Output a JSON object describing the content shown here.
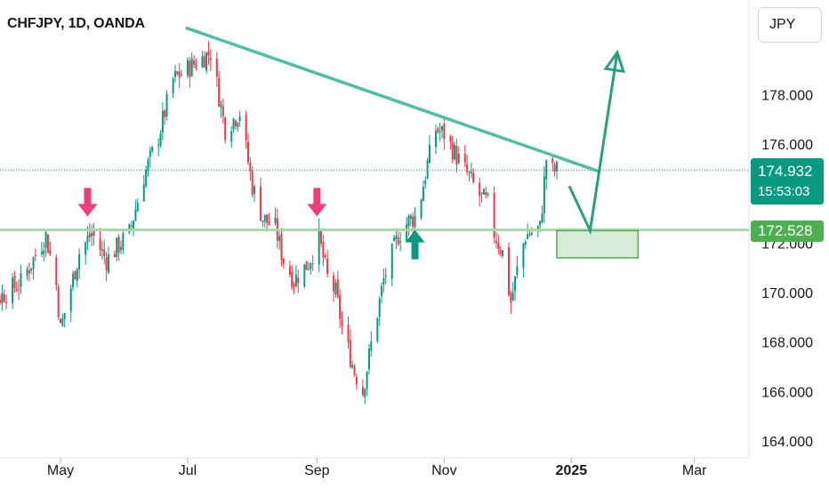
{
  "header": {
    "title": "CHFJPY, 1D, OANDA"
  },
  "currency_button": {
    "label": "JPY"
  },
  "price_badge": {
    "price": "174.932",
    "countdown": "15:53:03"
  },
  "level_badge": {
    "price": "172.528"
  },
  "colors": {
    "up": "#089981",
    "down": "#f23645",
    "trendline": "#4dbfa5",
    "support": "#a5d6a7",
    "arrow_down": "#ec407a",
    "arrow_up": "#089981",
    "projection": "#26a17b"
  },
  "icons": [
    "arrow-down-marker-icon",
    "arrow-up-marker-icon"
  ],
  "chart_data": {
    "type": "candlestick",
    "symbol": "CHFJPY",
    "interval": "1D",
    "source": "OANDA",
    "ylim": [
      163.6,
      182.0
    ],
    "y_ticks": [
      164,
      166,
      168,
      170,
      172,
      174,
      176,
      178
    ],
    "y_tick_labels": [
      "164.000",
      "166.000",
      "168.000",
      "170.000",
      "172.000",
      "174.000",
      "176.000",
      "178.000"
    ],
    "x_axis_labels": [
      {
        "label": "May",
        "date": "2024-05-01"
      },
      {
        "label": "Jul",
        "date": "2024-07-01"
      },
      {
        "label": "Sep",
        "date": "2024-09-01"
      },
      {
        "label": "Nov",
        "date": "2024-11-01"
      },
      {
        "label": "2025",
        "date": "2025-01-01",
        "bold": true
      },
      {
        "label": "Mar",
        "date": "2025-03-01"
      }
    ],
    "last_price": 174.932,
    "support_level": 172.528,
    "price_path": [
      {
        "date": "2024-03-18",
        "price": 168.6
      },
      {
        "date": "2024-04-03",
        "price": 169.9
      },
      {
        "date": "2024-04-12",
        "price": 170.4
      },
      {
        "date": "2024-04-24",
        "price": 172.3
      },
      {
        "date": "2024-04-29",
        "price": 170.3
      },
      {
        "date": "2024-05-01",
        "price": 168.5
      },
      {
        "date": "2024-05-10",
        "price": 171.6
      },
      {
        "date": "2024-05-16",
        "price": 172.4
      },
      {
        "date": "2024-05-23",
        "price": 171.3
      },
      {
        "date": "2024-06-03",
        "price": 172.4
      },
      {
        "date": "2024-06-10",
        "price": 174.7
      },
      {
        "date": "2024-06-17",
        "price": 176.3
      },
      {
        "date": "2024-06-24",
        "price": 178.6
      },
      {
        "date": "2024-07-05",
        "price": 179.3
      },
      {
        "date": "2024-07-12",
        "price": 179.7
      },
      {
        "date": "2024-07-15",
        "price": 178.4
      },
      {
        "date": "2024-07-19",
        "price": 176.6
      },
      {
        "date": "2024-07-26",
        "price": 177.3
      },
      {
        "date": "2024-08-01",
        "price": 174.3
      },
      {
        "date": "2024-08-06",
        "price": 173.0
      },
      {
        "date": "2024-08-12",
        "price": 172.6
      },
      {
        "date": "2024-08-16",
        "price": 171.3
      },
      {
        "date": "2024-08-21",
        "price": 170.5
      },
      {
        "date": "2024-08-28",
        "price": 171.2
      },
      {
        "date": "2024-09-02",
        "price": 172.2
      },
      {
        "date": "2024-09-06",
        "price": 170.6
      },
      {
        "date": "2024-09-10",
        "price": 170.0
      },
      {
        "date": "2024-09-13",
        "price": 168.6
      },
      {
        "date": "2024-09-19",
        "price": 166.8
      },
      {
        "date": "2024-09-23",
        "price": 166.0
      },
      {
        "date": "2024-09-27",
        "price": 167.9
      },
      {
        "date": "2024-10-03",
        "price": 170.5
      },
      {
        "date": "2024-10-10",
        "price": 172.3
      },
      {
        "date": "2024-10-15",
        "price": 172.9
      },
      {
        "date": "2024-10-19",
        "price": 173.1
      },
      {
        "date": "2024-10-24",
        "price": 175.2
      },
      {
        "date": "2024-10-28",
        "price": 176.6
      },
      {
        "date": "2024-11-01",
        "price": 176.4
      },
      {
        "date": "2024-11-07",
        "price": 175.5
      },
      {
        "date": "2024-11-12",
        "price": 174.8
      },
      {
        "date": "2024-11-18",
        "price": 173.9
      },
      {
        "date": "2024-11-22",
        "price": 173.6
      },
      {
        "date": "2024-11-25",
        "price": 172.4
      },
      {
        "date": "2024-11-29",
        "price": 171.6
      },
      {
        "date": "2024-12-03",
        "price": 169.6
      },
      {
        "date": "2024-12-06",
        "price": 170.9
      },
      {
        "date": "2024-12-10",
        "price": 172.3
      },
      {
        "date": "2024-12-17",
        "price": 172.6
      },
      {
        "date": "2024-12-20",
        "price": 175.4
      },
      {
        "date": "2024-12-23",
        "price": 174.9
      },
      {
        "date": "2024-12-25",
        "price": 174.932
      }
    ],
    "annotations": {
      "trendline": [
        {
          "date": "2024-06-30",
          "price": 180.7
        },
        {
          "date": "2025-01-14",
          "price": 174.9
        }
      ],
      "support_zone": {
        "from": "2024-12-25",
        "to": "2025-02-02",
        "top": 172.5,
        "bottom": 171.4
      },
      "projection": [
        {
          "date": "2024-12-31",
          "price": 174.3
        },
        {
          "date": "2025-01-10",
          "price": 172.5
        },
        {
          "date": "2025-01-23",
          "price": 179.7
        }
      ],
      "down_arrows": [
        {
          "date": "2024-05-14",
          "price": 172.5
        },
        {
          "date": "2024-09-01",
          "price": 172.5
        }
      ],
      "up_arrows": [
        {
          "date": "2024-10-18",
          "price": 172.6
        }
      ]
    }
  }
}
